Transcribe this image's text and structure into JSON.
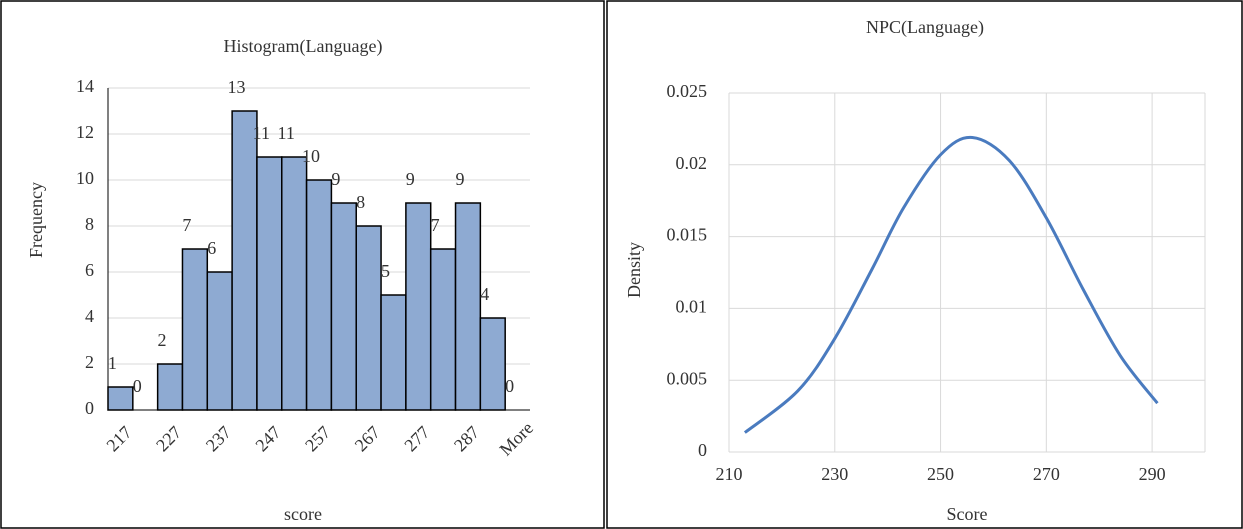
{
  "chart_data": [
    {
      "type": "bar",
      "title": "Histogram(Language)",
      "x_label": "score",
      "y_label": "Frequency",
      "categories": [
        "217",
        null,
        "227",
        null,
        "237",
        null,
        "247",
        null,
        "257",
        null,
        "267",
        null,
        "277",
        null,
        "287",
        null,
        "More"
      ],
      "values": [
        1,
        0,
        2,
        7,
        6,
        13,
        11,
        11,
        10,
        9,
        8,
        5,
        9,
        7,
        9,
        4,
        0
      ],
      "color": "#8eaad2",
      "ylim": [
        0,
        14
      ],
      "yticks": [
        0,
        2,
        4,
        6,
        8,
        10,
        12,
        14
      ],
      "grid": true
    },
    {
      "type": "line",
      "title": "NPC(Language)",
      "x_label": "Score",
      "y_label": "Density",
      "x": [
        213,
        223,
        230,
        237,
        243,
        250,
        256,
        263,
        270,
        277,
        284,
        291
      ],
      "values": [
        0.00135,
        0.00425,
        0.0079,
        0.0127,
        0.017,
        0.0207,
        0.0219,
        0.0203,
        0.0163,
        0.0113,
        0.0067,
        0.0034
      ],
      "color": "#4a7bbf",
      "xlim": [
        210,
        300
      ],
      "xticks": [
        210,
        230,
        250,
        270,
        290
      ],
      "ylim": [
        0,
        0.025
      ],
      "yticks": [
        0,
        0.005,
        0.01,
        0.015,
        0.02,
        0.025
      ],
      "grid": true
    }
  ]
}
